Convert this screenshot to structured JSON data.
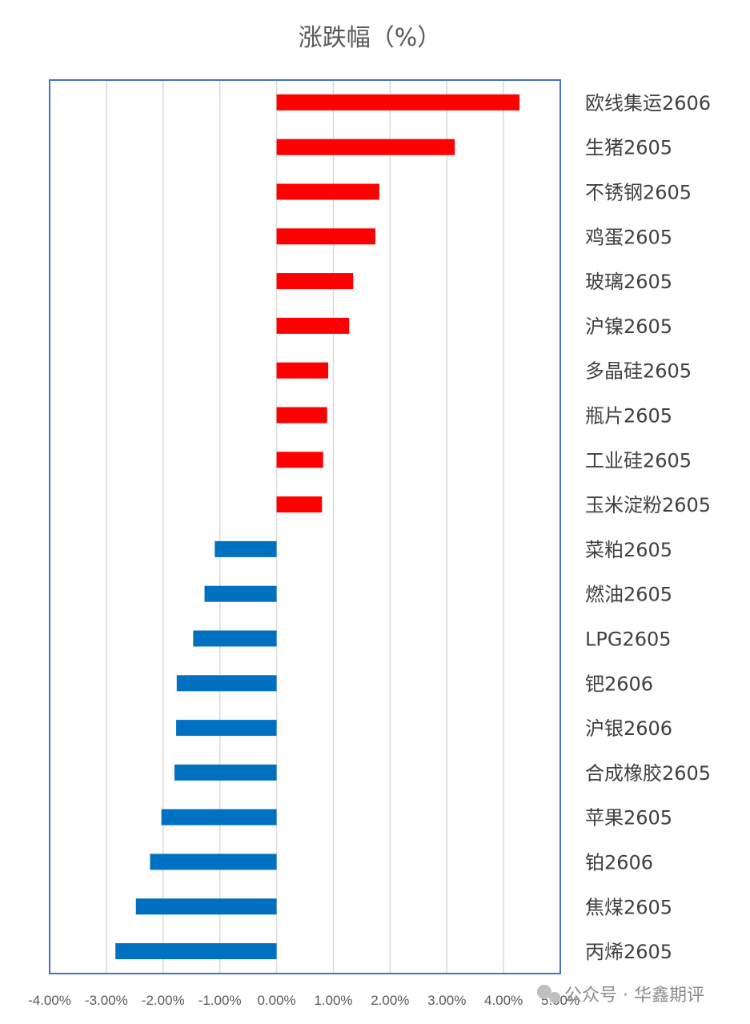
{
  "chart_data": {
    "type": "bar",
    "orientation": "horizontal",
    "title": "涨跌幅（%）",
    "categories": [
      "欧线集运2606",
      "生猪2605",
      "不锈钢2605",
      "鸡蛋2605",
      "玻璃2605",
      "沪镍2605",
      "多晶硅2605",
      "瓶片2605",
      "工业硅2605",
      "玉米淀粉2605",
      "菜粕2605",
      "燃油2605",
      "LPG2605",
      "钯2606",
      "沪银2606",
      "合成橡胶2605",
      "苹果2605",
      "铂2606",
      "焦煤2605",
      "丙烯2605"
    ],
    "values": [
      4.28,
      3.14,
      1.81,
      1.74,
      1.35,
      1.28,
      0.91,
      0.89,
      0.82,
      0.8,
      -1.09,
      -1.27,
      -1.47,
      -1.76,
      -1.77,
      -1.8,
      -2.03,
      -2.23,
      -2.48,
      -2.84
    ],
    "xlim": [
      -4,
      5
    ],
    "xticks": [
      "-4.00%",
      "-3.00%",
      "-2.00%",
      "-1.00%",
      "0.00%",
      "1.00%",
      "2.00%",
      "3.00%",
      "4.00%",
      "5.00%"
    ],
    "colors": {
      "positive": "#ff0000",
      "negative": "#0070c0",
      "frame": "#4472c4",
      "grid": "#d9d9d9"
    },
    "grid": true,
    "legend": "none"
  },
  "watermark": "公众号 · 华鑫期评"
}
